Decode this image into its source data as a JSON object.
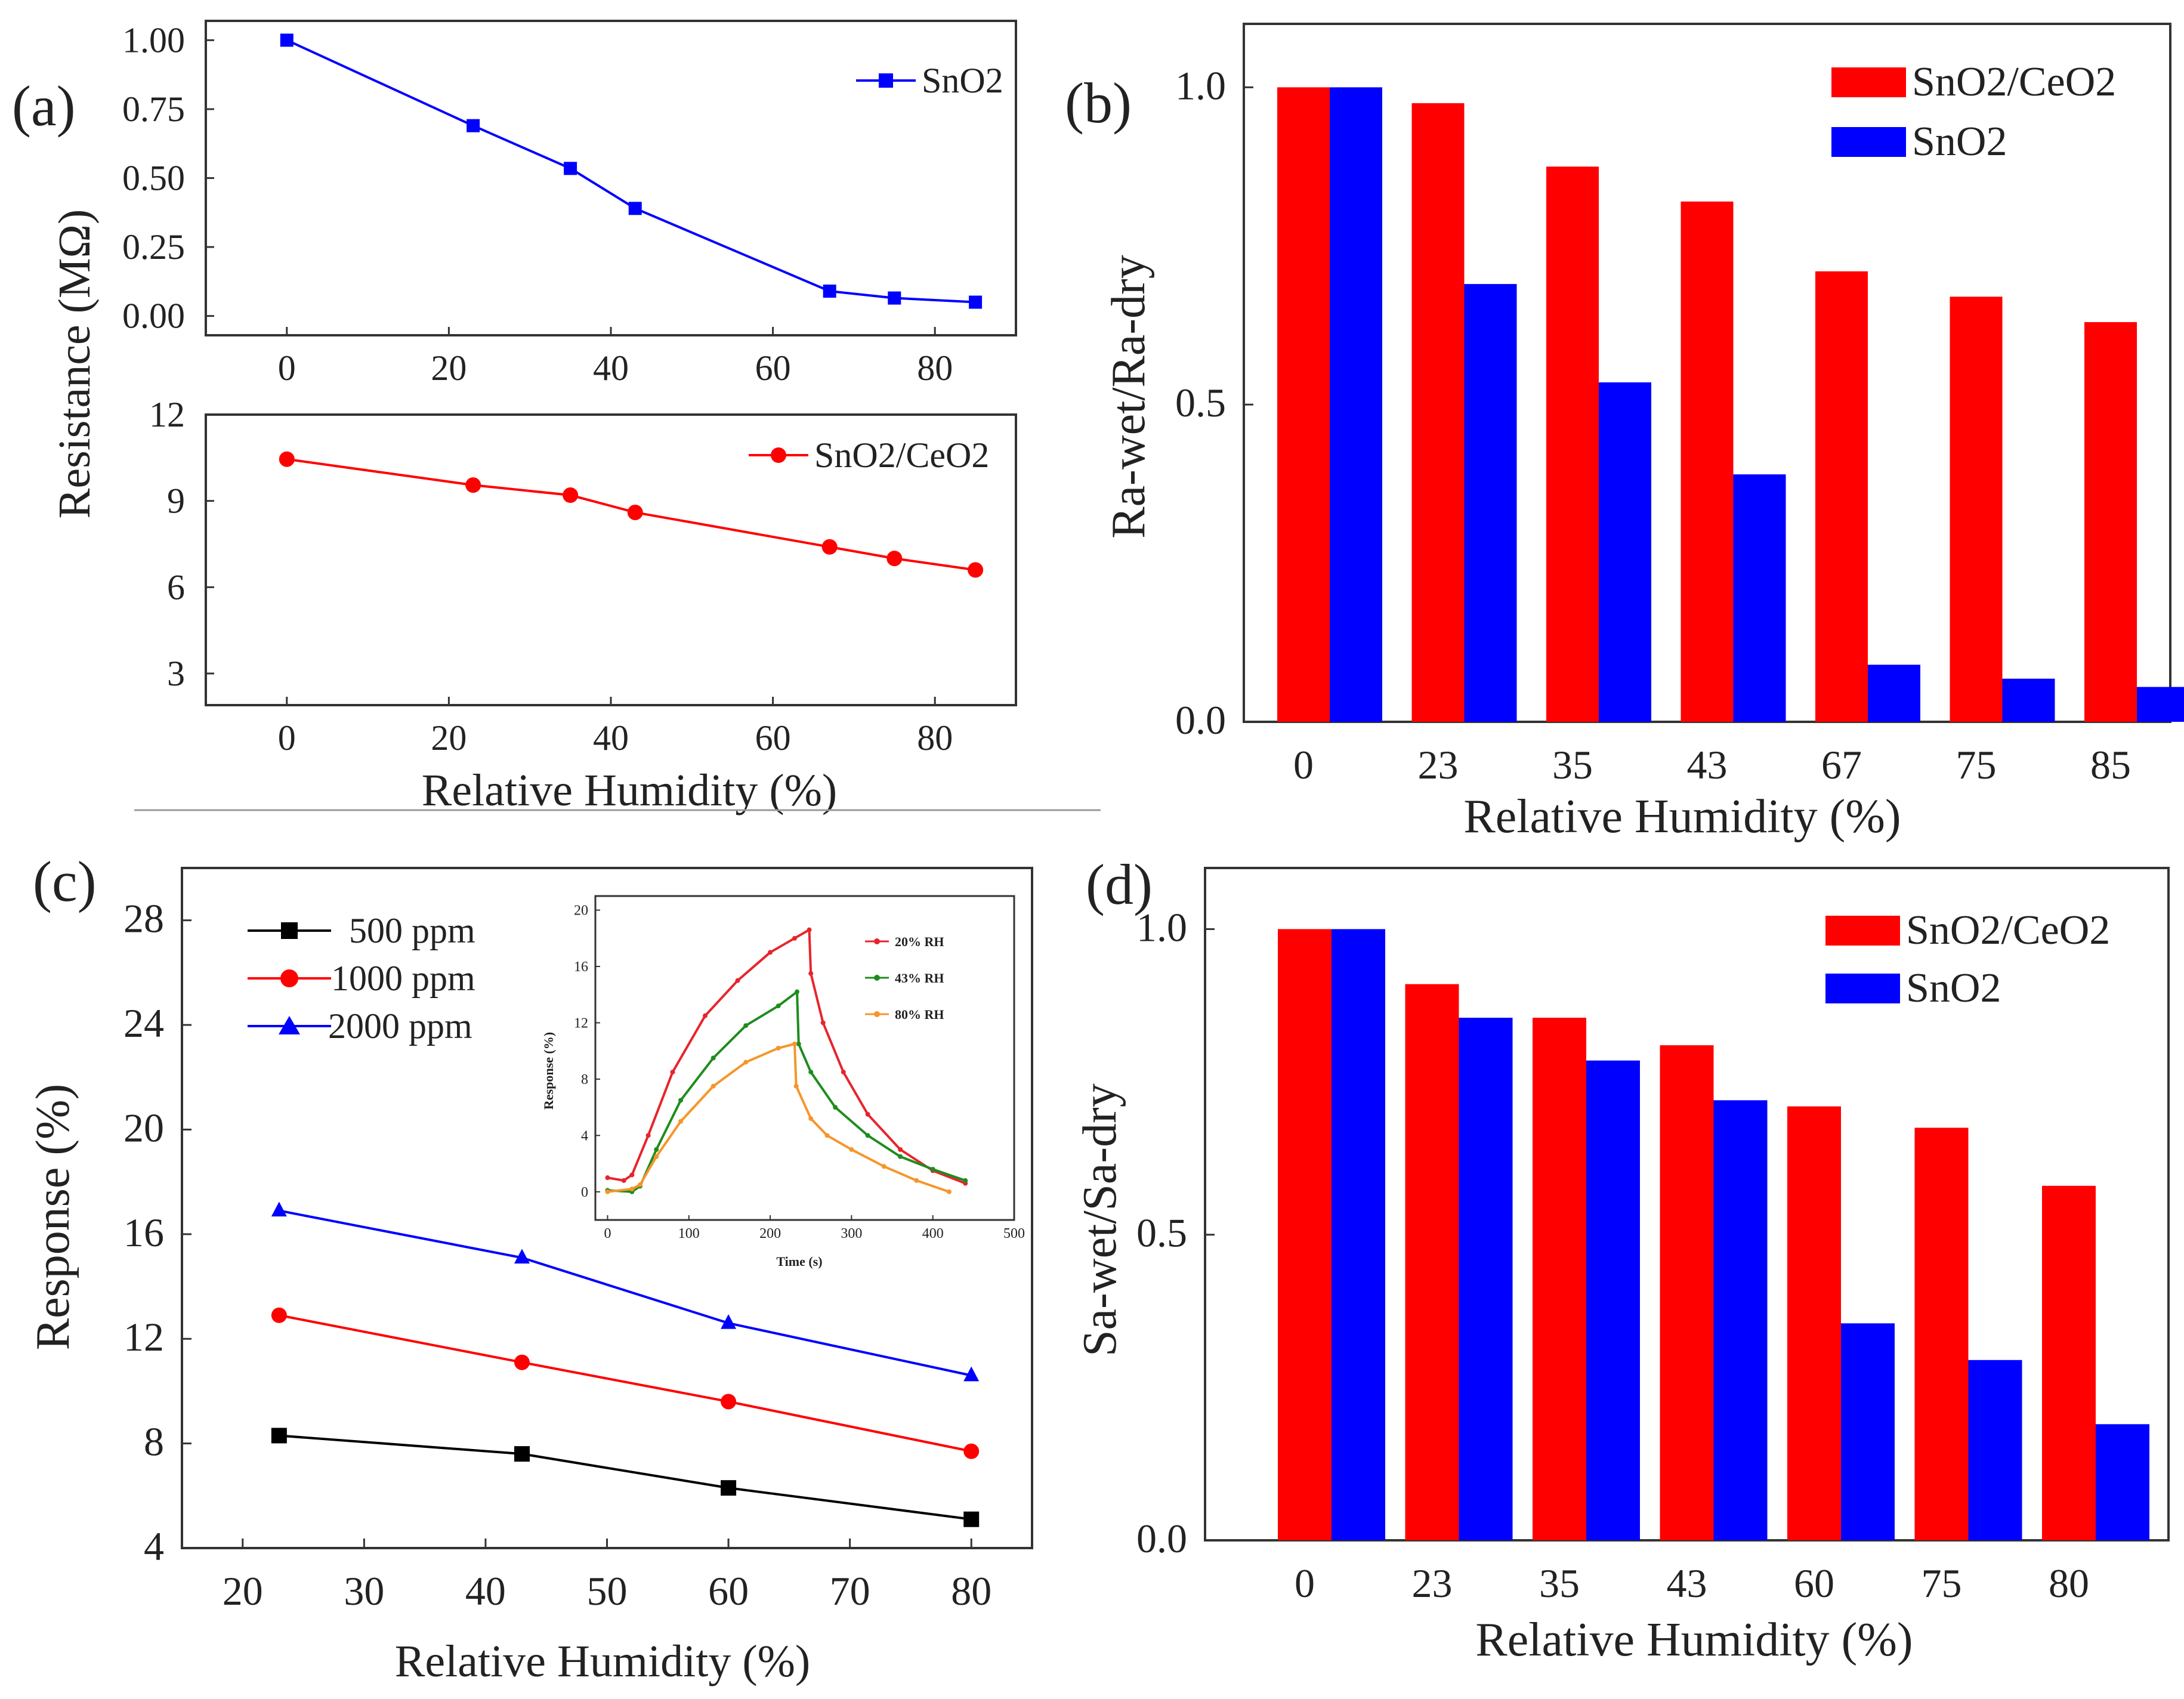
{
  "chart_data": [
    {
      "id": "a",
      "panel_label": "(a)",
      "type": "line",
      "ylabel": "Resistance (MΩ)",
      "xlabel": "Relative Humidity (%)",
      "subplots": [
        {
          "series": [
            {
              "name": "SnO2",
              "color": "#0000ff",
              "marker": "square",
              "x": [
                0,
                23,
                35,
                43,
                67,
                75,
                85
              ],
              "y": [
                1.0,
                0.69,
                0.535,
                0.39,
                0.09,
                0.065,
                0.05
              ]
            }
          ],
          "xlim": [
            -10,
            90
          ],
          "ylim": [
            -0.07,
            1.07
          ],
          "xticks": [
            0,
            20,
            40,
            60,
            80
          ],
          "xtick_labels": [
            "0",
            "20",
            "40",
            "60",
            "80"
          ],
          "yticks": [
            0.0,
            0.25,
            0.5,
            0.75,
            1.0
          ],
          "ytick_labels": [
            "0.00",
            "0.25",
            "0.50",
            "0.75",
            "1.00"
          ]
        },
        {
          "series": [
            {
              "name": "SnO2/CeO2",
              "color": "#ff0000",
              "marker": "circle",
              "x": [
                0,
                23,
                35,
                43,
                67,
                75,
                85
              ],
              "y": [
                10.45,
                9.55,
                9.2,
                8.6,
                7.4,
                7.0,
                6.6
              ]
            }
          ],
          "xlim": [
            -10,
            90
          ],
          "ylim": [
            1.9,
            12.0
          ],
          "xticks": [
            0,
            20,
            40,
            60,
            80
          ],
          "xtick_labels": [
            "0",
            "20",
            "40",
            "60",
            "80"
          ],
          "yticks": [
            3,
            6,
            9,
            12
          ],
          "ytick_labels": [
            "3",
            "6",
            "9",
            "12"
          ]
        }
      ]
    },
    {
      "id": "b",
      "panel_label": "(b)",
      "type": "bar",
      "ylabel": "Ra-wet/Ra-dry",
      "xlabel": "Relative Humidity (%)",
      "categories": [
        "0",
        "23",
        "35",
        "43",
        "67",
        "75",
        "85"
      ],
      "series": [
        {
          "name": "SnO2/CeO2",
          "color": "#ff0000",
          "values": [
            1.0,
            0.975,
            0.875,
            0.82,
            0.71,
            0.67,
            0.63
          ]
        },
        {
          "name": "SnO2",
          "color": "#0000ff",
          "values": [
            1.0,
            0.69,
            0.535,
            0.39,
            0.09,
            0.068,
            0.055
          ]
        }
      ],
      "ylim": [
        0.0,
        1.1
      ],
      "yticks": [
        0.0,
        0.5,
        1.0
      ],
      "ytick_labels": [
        "0.0",
        "0.5",
        "1.0"
      ]
    },
    {
      "id": "c",
      "panel_label": "(c)",
      "type": "line",
      "ylabel": "Response (%)",
      "xlabel": "Relative Humidity (%)",
      "xlim": [
        15,
        85
      ],
      "ylim": [
        4,
        30
      ],
      "xticks": [
        20,
        30,
        40,
        50,
        60,
        70,
        80
      ],
      "xtick_labels": [
        "20",
        "30",
        "40",
        "50",
        "60",
        "70",
        "80"
      ],
      "yticks": [
        4,
        8,
        12,
        16,
        20,
        24,
        28
      ],
      "ytick_labels": [
        "4",
        "8",
        "12",
        "16",
        "20",
        "24",
        "28"
      ],
      "series": [
        {
          "name": "500 ppm",
          "color": "#000000",
          "marker": "square",
          "x": [
            23,
            43,
            60,
            80
          ],
          "y": [
            8.3,
            7.6,
            6.3,
            5.1
          ]
        },
        {
          "name": "1000 ppm",
          "color": "#ff0000",
          "marker": "circle",
          "x": [
            23,
            43,
            60,
            80
          ],
          "y": [
            12.9,
            11.1,
            9.6,
            7.7
          ]
        },
        {
          "name": "2000 ppm",
          "color": "#0000ff",
          "marker": "triangle",
          "x": [
            23,
            43,
            60,
            80
          ],
          "y": [
            16.9,
            15.1,
            12.6,
            10.6
          ]
        }
      ],
      "inset": {
        "type": "line",
        "xlabel": "Time (s)",
        "ylabel": "Response (%)",
        "xlim": [
          -15,
          500
        ],
        "ylim": [
          -2,
          21
        ],
        "xticks": [
          0,
          100,
          200,
          300,
          400,
          500
        ],
        "xtick_labels": [
          "0",
          "100",
          "200",
          "300",
          "400",
          "500"
        ],
        "yticks": [
          0,
          4,
          8,
          12,
          16,
          20
        ],
        "ytick_labels": [
          "0",
          "4",
          "8",
          "12",
          "16",
          "20"
        ],
        "series": [
          {
            "name": "20% RH",
            "color": "#e8242b",
            "x": [
              0,
              20,
              30,
              50,
              80,
              120,
              160,
              200,
              230,
              248,
              250,
              265,
              290,
              320,
              360,
              400,
              440
            ],
            "y": [
              1,
              0.8,
              1.2,
              4,
              8.5,
              12.5,
              15,
              17,
              18,
              18.6,
              15.5,
              12,
              8.5,
              5.5,
              3,
              1.5,
              0.6
            ]
          },
          {
            "name": "43% RH",
            "color": "#1e8c1e",
            "x": [
              0,
              30,
              40,
              60,
              90,
              130,
              170,
              210,
              233,
              235,
              250,
              280,
              320,
              360,
              400,
              440
            ],
            "y": [
              0.1,
              0,
              0.4,
              3,
              6.5,
              9.5,
              11.8,
              13.2,
              14.2,
              10.5,
              8.5,
              6,
              4,
              2.5,
              1.6,
              0.8
            ]
          },
          {
            "name": "80% RH",
            "color": "#f5962a",
            "x": [
              0,
              30,
              40,
              60,
              90,
              130,
              170,
              210,
              230,
              232,
              250,
              270,
              300,
              340,
              380,
              420
            ],
            "y": [
              0,
              0.2,
              0.5,
              2.5,
              5,
              7.5,
              9.2,
              10.2,
              10.5,
              7.5,
              5.2,
              4,
              3,
              1.8,
              0.8,
              0
            ]
          }
        ]
      }
    },
    {
      "id": "d",
      "panel_label": "(d)",
      "type": "bar",
      "ylabel": "Sa-wet/Sa-dry",
      "xlabel": "Relative Humidity (%)",
      "categories": [
        "0",
        "23",
        "35",
        "43",
        "60",
        "75",
        "80"
      ],
      "series": [
        {
          "name": "SnO2/CeO2",
          "color": "#ff0000",
          "values": [
            1.0,
            0.91,
            0.855,
            0.81,
            0.71,
            0.675,
            0.58
          ]
        },
        {
          "name": "SnO2",
          "color": "#0000ff",
          "values": [
            1.0,
            0.855,
            0.785,
            0.72,
            0.355,
            0.295,
            0.19
          ]
        }
      ],
      "ylim": [
        0.0,
        1.1
      ],
      "yticks": [
        0.0,
        0.5,
        1.0
      ],
      "ytick_labels": [
        "0.0",
        "0.5",
        "1.0"
      ]
    }
  ]
}
